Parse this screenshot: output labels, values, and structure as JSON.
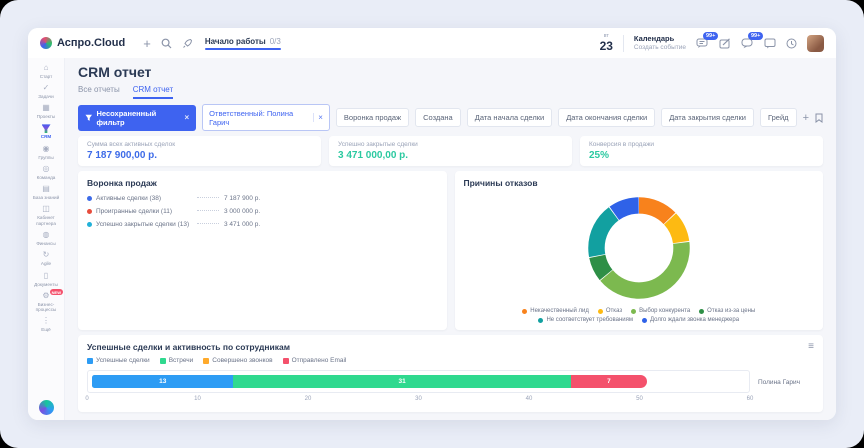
{
  "topbar": {
    "logo": "Аспро.Cloud",
    "onboarding": {
      "label": "Начало работы",
      "progress": "0/3"
    },
    "date": {
      "weekday": "вт",
      "day": "23"
    },
    "calendar": {
      "title": "Календарь",
      "subtitle": "Создать событие"
    },
    "badges": {
      "team_chat": "99+",
      "messenger": "99+"
    }
  },
  "sidebar": {
    "items": [
      {
        "label": "Старт",
        "icon": "⌂"
      },
      {
        "label": "Задачи",
        "icon": "✓"
      },
      {
        "label": "Проекты",
        "icon": "▦"
      },
      {
        "label": "CRM",
        "icon": "funnel",
        "active": true
      },
      {
        "label": "Группы",
        "icon": "◉"
      },
      {
        "label": "Команда",
        "icon": "◎"
      },
      {
        "label": "База знаний",
        "icon": "▤"
      },
      {
        "label": "Кабинет партнера",
        "icon": "◫"
      },
      {
        "label": "Финансы",
        "icon": "◍"
      },
      {
        "label": "Agile",
        "icon": "↻"
      },
      {
        "label": "Документы",
        "icon": "▯"
      },
      {
        "label": "Бизнес-процессы",
        "icon": "⚙",
        "badge": "NEW"
      },
      {
        "label": "Ещё",
        "icon": "⋮"
      }
    ]
  },
  "page": {
    "title": "CRM отчет",
    "tabs": [
      {
        "label": "Все отчеты",
        "active": false
      },
      {
        "label": "CRM отчет",
        "active": true
      }
    ]
  },
  "filters": {
    "primary_chip": "Несохраненный фильтр",
    "responsible_chip": "Ответственный: Полина Гарич",
    "buttons": [
      "Воронка продаж",
      "Создана",
      "Дата начала сделки",
      "Дата окончания сделки",
      "Дата закрытия сделки",
      "Грейд"
    ]
  },
  "stats": [
    {
      "label": "Сумма всех активных сделок",
      "value": "7 187 900,00 р.",
      "color": "#3D6BE8"
    },
    {
      "label": "Успешно закрытые сделки",
      "value": "3 471 000,00 р.",
      "color": "#2BC9A0"
    },
    {
      "label": "Конверсия в продажи",
      "value": "25%",
      "color": "#2BC9A0"
    }
  ],
  "funnel_panel": {
    "title": "Воронка продаж",
    "items": [
      {
        "label": "Активные сделки (38)",
        "value": "7 187 900 р.",
        "color": "#3D6BE8"
      },
      {
        "label": "Проигранные сделки (11)",
        "value": "3 000 000 р.",
        "color": "#E74C3C"
      },
      {
        "label": "Успешно закрытые сделки (13)",
        "value": "3 471 000 р.",
        "color": "#22B1D8"
      }
    ]
  },
  "chart_data": [
    {
      "type": "pie",
      "title": "Причины отказов",
      "donut": true,
      "legend_position": "bottom",
      "labels": [
        "Некачественный лид",
        "Отказ",
        "Выбор конкурента",
        "Отказ из-за цены",
        "Не соответствует требованиям",
        "Долго ждали звонка менеджера"
      ],
      "values": [
        13,
        10,
        41,
        8,
        18,
        10
      ],
      "unit": "percent",
      "colors": [
        "#F8821C",
        "#FDBA12",
        "#7CB94F",
        "#2E8F46",
        "#12A0A0",
        "#2F62E8"
      ]
    },
    {
      "type": "bar",
      "orientation": "horizontal",
      "stacked": true,
      "title": "Успешные сделки и активность по сотрудникам",
      "categories": [
        "Полина Гарич"
      ],
      "series": [
        {
          "name": "Успешные сделки",
          "values": [
            13
          ],
          "color": "#2D9CF4"
        },
        {
          "name": "Встречи",
          "values": [
            31
          ],
          "color": "#2FD98F"
        },
        {
          "name": "Совершено звонков",
          "values": [
            0
          ],
          "color": "#FFAA2B"
        },
        {
          "name": "Отправлено Email",
          "values": [
            7
          ],
          "color": "#F4516C"
        }
      ],
      "xlim": [
        0,
        60
      ],
      "ticks": [
        0,
        10,
        20,
        30,
        40,
        50,
        60
      ],
      "legend_position": "top",
      "grid": false
    }
  ]
}
